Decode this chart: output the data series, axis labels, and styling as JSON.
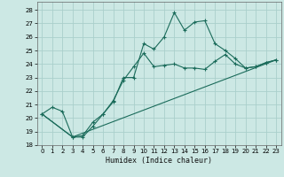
{
  "title": "",
  "xlabel": "Humidex (Indice chaleur)",
  "bg_color": "#cce8e4",
  "grid_color": "#aacfcb",
  "line_color": "#1a6b5a",
  "xlim": [
    -0.5,
    23.5
  ],
  "ylim": [
    18,
    28.6
  ],
  "yticks": [
    18,
    19,
    20,
    21,
    22,
    23,
    24,
    25,
    26,
    27,
    28
  ],
  "xticks": [
    0,
    1,
    2,
    3,
    4,
    5,
    6,
    7,
    8,
    9,
    10,
    11,
    12,
    13,
    14,
    15,
    16,
    17,
    18,
    19,
    20,
    21,
    22,
    23
  ],
  "series1_x": [
    0,
    1,
    2,
    3,
    4,
    5,
    6,
    7,
    8,
    9,
    10,
    11,
    12,
    13,
    14,
    15,
    16,
    17,
    18,
    19,
    20,
    21,
    22,
    23
  ],
  "series1_y": [
    20.3,
    20.8,
    20.5,
    18.6,
    18.7,
    19.7,
    20.3,
    21.2,
    23.0,
    23.0,
    25.5,
    25.1,
    26.0,
    27.8,
    26.5,
    27.1,
    27.2,
    25.5,
    25.0,
    24.4,
    23.7,
    23.8,
    24.1,
    24.3
  ],
  "series2_x": [
    0,
    3,
    4,
    5,
    6,
    7,
    8,
    9,
    10,
    11,
    12,
    13,
    14,
    15,
    16,
    17,
    18,
    19,
    20,
    21,
    22,
    23
  ],
  "series2_y": [
    20.3,
    18.6,
    18.6,
    19.4,
    20.3,
    21.3,
    22.8,
    23.8,
    24.8,
    23.8,
    23.9,
    24.0,
    23.7,
    23.7,
    23.6,
    24.2,
    24.7,
    24.0,
    23.7,
    23.8,
    24.1,
    24.3
  ],
  "series3_x": [
    0,
    3,
    23
  ],
  "series3_y": [
    20.3,
    18.6,
    24.3
  ]
}
